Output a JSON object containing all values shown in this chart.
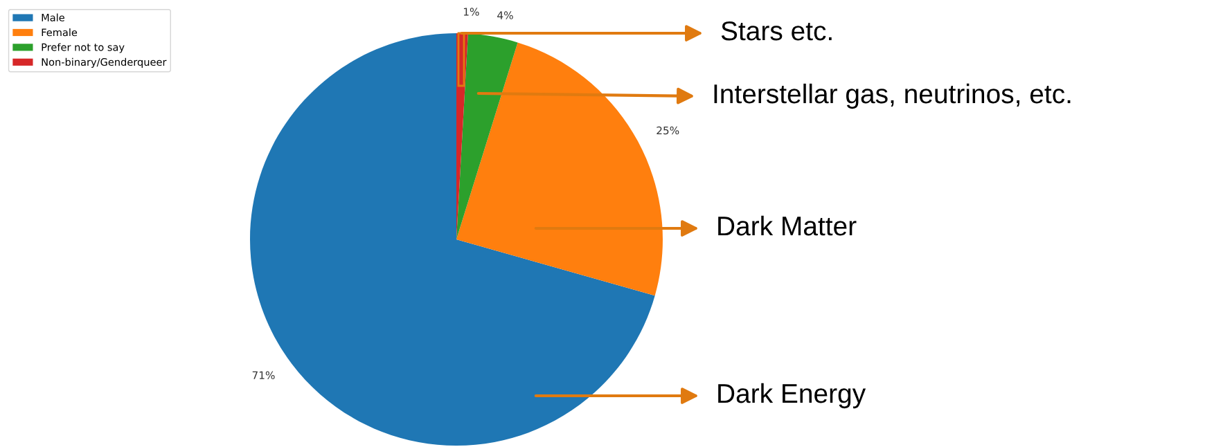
{
  "chart_data": {
    "type": "pie",
    "categories": [
      "Male",
      "Female",
      "Prefer not to say",
      "Non-binary/Genderqueer"
    ],
    "values": [
      70.6,
      24.6,
      3.9,
      0.9
    ],
    "colors": [
      "#1f77b4",
      "#ff7f0e",
      "#2ca02c",
      "#d62728"
    ],
    "value_labels": [
      "71%",
      "25%",
      "4%",
      "1%"
    ],
    "legend": "top left",
    "annotations": [
      "Stars etc.",
      "Interstellar gas, neutrinos, etc.",
      "Dark Matter",
      "Dark Energy"
    ]
  }
}
